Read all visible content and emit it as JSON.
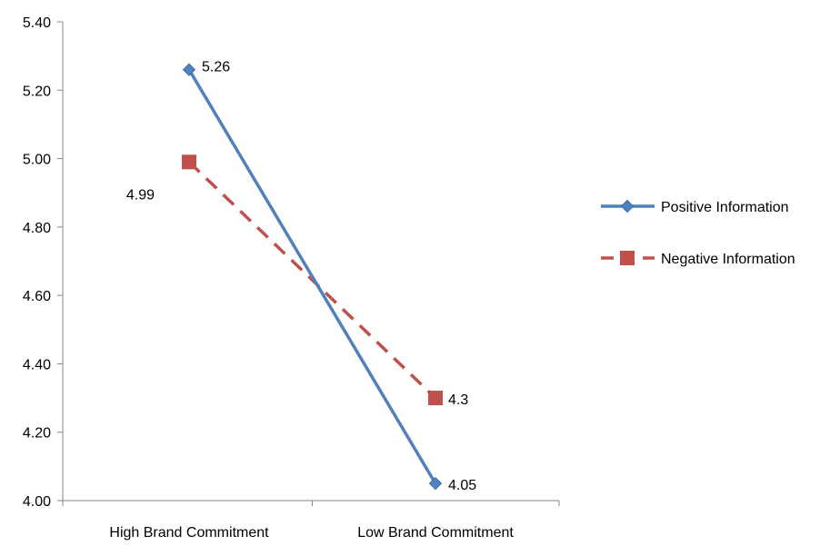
{
  "chart_data": {
    "type": "line",
    "title": "",
    "xlabel": "",
    "ylabel": "",
    "categories": [
      "High Brand Commitment",
      "Low Brand Commitment"
    ],
    "ylim": [
      4.0,
      5.4
    ],
    "y_ticks": [
      "4.00",
      "4.20",
      "4.40",
      "4.60",
      "4.80",
      "5.00",
      "5.20",
      "5.40"
    ],
    "grid": false,
    "legend_position": "right",
    "series": [
      {
        "name": "Positive Information",
        "values": [
          5.26,
          4.05
        ],
        "labels": [
          "5.26",
          "4.05"
        ],
        "color": "#4F81BD",
        "line_style": "solid",
        "marker": "diamond"
      },
      {
        "name": "Negative Information",
        "values": [
          4.99,
          4.3
        ],
        "labels": [
          "4.99",
          "4.3"
        ],
        "color": "#C0504D",
        "line_style": "dashed",
        "marker": "square"
      }
    ]
  }
}
